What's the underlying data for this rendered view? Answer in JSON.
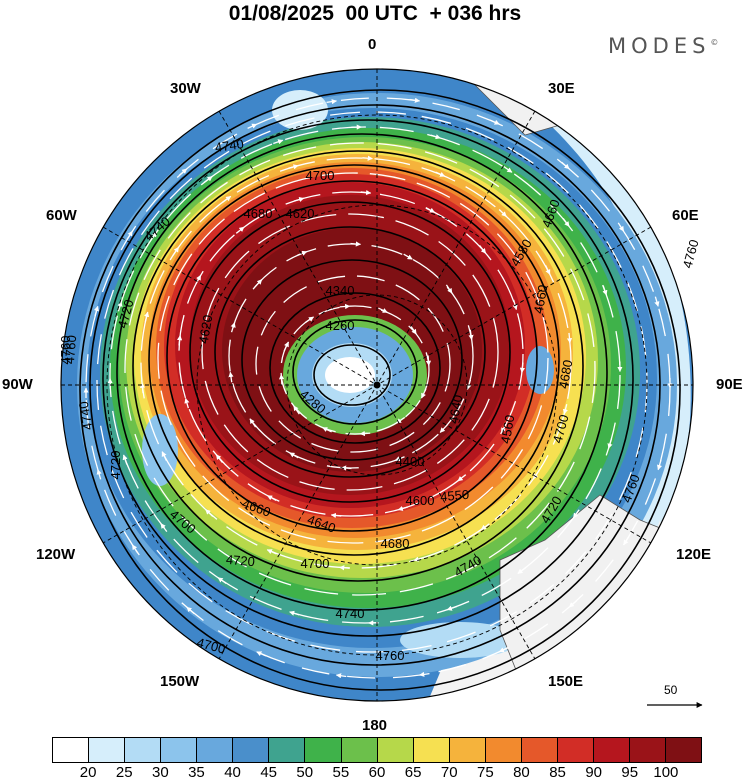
{
  "title": "01/08/2025  00 UTC  + 036 hrs",
  "brand": "MODES",
  "brand_mark": "©",
  "longitude_labels": {
    "n0": "0",
    "n30w": "30W",
    "n30e": "30E",
    "n60w": "60W",
    "n60e": "60E",
    "w90": "90W",
    "e90": "90E",
    "s120w": "120W",
    "s120e": "120E",
    "s150w": "150W",
    "s150e": "150E",
    "s180": "180"
  },
  "contour_labels": [
    "4760",
    "4740",
    "4700",
    "4680",
    "4620",
    "4740",
    "4760",
    "4720",
    "4740",
    "4760",
    "4720",
    "4700",
    "4640",
    "4680",
    "4660",
    "4700",
    "4720",
    "4740",
    "4760",
    "4660",
    "4560",
    "4400",
    "4260",
    "4280",
    "4340",
    "4580",
    "4660",
    "4700",
    "4720",
    "4740",
    "4760",
    "4680",
    "4640",
    "4550",
    "4600",
    "4700",
    "4620"
  ],
  "colorbar": {
    "ticks": [
      "20",
      "25",
      "30",
      "35",
      "40",
      "45",
      "50",
      "55",
      "60",
      "65",
      "70",
      "75",
      "80",
      "85",
      "90",
      "95",
      "100"
    ],
    "colors": [
      "#ffffff",
      "#d6eefb",
      "#b3dcf5",
      "#8cc4ec",
      "#68a8dd",
      "#4a8fcb",
      "#3fa38f",
      "#3fb24a",
      "#6cc04b",
      "#b6d84a",
      "#f6e051",
      "#f5b33c",
      "#f28a2e",
      "#e5582a",
      "#d22d26",
      "#b5161e",
      "#9a1318",
      "#7f1014"
    ]
  },
  "reference_vector": {
    "label": "50"
  }
}
